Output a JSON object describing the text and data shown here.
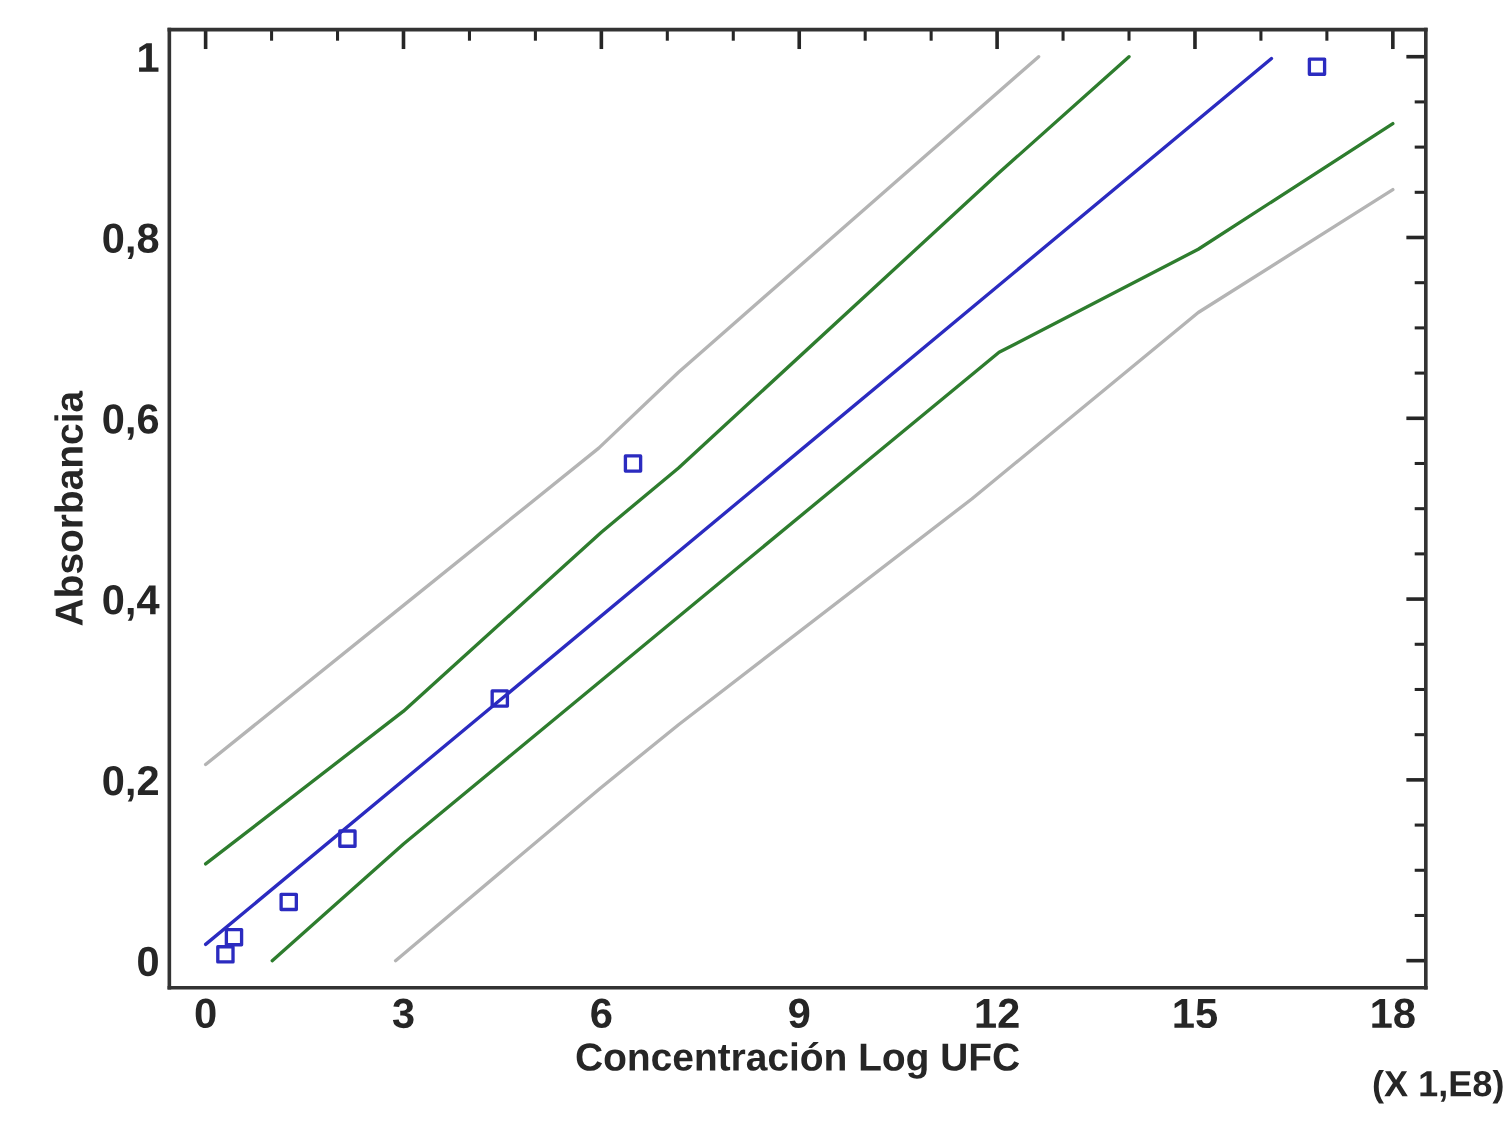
{
  "chart_data": {
    "type": "line",
    "xlabel": "Concentración Log UFC",
    "ylabel": "Absorbancia",
    "annotations": [
      "(X 1,E8)"
    ],
    "xlim": [
      -0.55,
      18.5
    ],
    "xticks": [
      0,
      3,
      6,
      9,
      12,
      15,
      18
    ],
    "ylim": [
      -0.03,
      1.03
    ],
    "yticks": [
      0,
      {
        "value": 0.2,
        "label": "0,2"
      },
      {
        "value": 0.4,
        "label": "0,4"
      },
      {
        "value": 0.6,
        "label": "0,6"
      },
      {
        "value": 0.8,
        "label": "0,8"
      },
      1
    ],
    "grid": false,
    "legend": false,
    "series": [
      {
        "color": "#b4b4b4",
        "x": [
          0,
          3,
          5.96,
          7.17,
          12.63
        ],
        "values": [
          0.217,
          0.393,
          0.567,
          0.651,
          1.0
        ]
      },
      {
        "color": "#2e7d2e",
        "x": [
          0,
          3,
          6,
          7.17,
          12.02,
          14.0
        ],
        "values": [
          0.107,
          0.276,
          0.474,
          0.545,
          0.871,
          1.0
        ]
      },
      {
        "color": "#2b2bc0",
        "x": [
          0,
          4.46,
          16.16
        ],
        "values": [
          0.018,
          0.288,
          0.998
        ]
      },
      {
        "color": "#2e7d2e",
        "x": [
          1.01,
          3,
          6,
          7.99,
          12.03,
          15.05,
          18
        ],
        "values": [
          0,
          0.129,
          0.31,
          0.43,
          0.673,
          0.787,
          0.926
        ]
      },
      {
        "color": "#b4b4b4",
        "x": [
          2.88,
          5.97,
          7.17,
          11.62,
          15.05,
          18
        ],
        "values": [
          0,
          0.19,
          0.261,
          0.511,
          0.717,
          0.853
        ]
      },
      {
        "type": "scatter",
        "color": "#2b2bc0",
        "marker": "square",
        "x": [
          0.3,
          0.43,
          1.26,
          2.15,
          4.46,
          6.48,
          16.85
        ],
        "values": [
          0.007,
          0.026,
          0.065,
          0.135,
          0.29,
          0.55,
          0.989
        ]
      }
    ]
  }
}
